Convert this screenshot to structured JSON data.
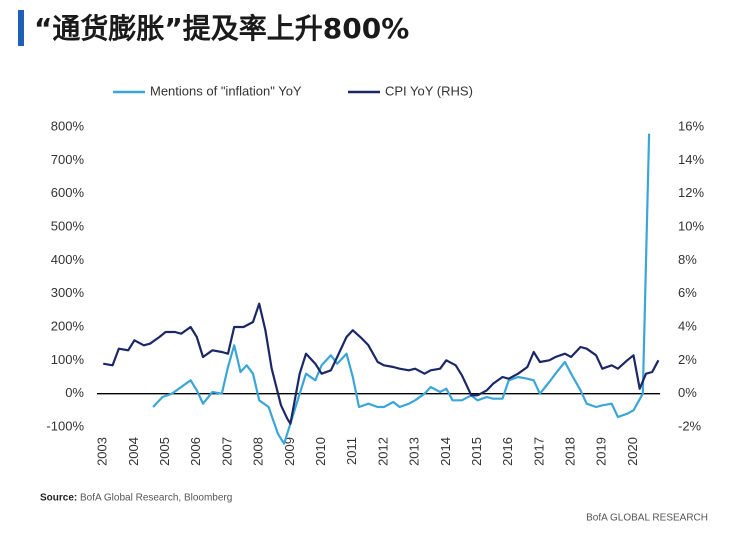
{
  "chart_data": {
    "type": "line",
    "title": "“通货膨胀”提及率上升800%",
    "source_label": "Source:",
    "source": "BofA Global Research, Bloomberg",
    "brand": "BofA GLOBAL RESEARCH",
    "xlim": [
      2002.8,
      2020.85
    ],
    "xticks": [
      2003,
      2004,
      2005,
      2006,
      2007,
      2008,
      2009,
      2010,
      2011,
      2012,
      2013,
      2014,
      2015,
      2016,
      2017,
      2018,
      2019,
      2020
    ],
    "ylim": [
      -100,
      800
    ],
    "yticks": [
      {
        "value": -100,
        "label": "-100%"
      },
      {
        "value": 0,
        "label": "0%"
      },
      {
        "value": 100,
        "label": "100%"
      },
      {
        "value": 200,
        "label": "200%"
      },
      {
        "value": 300,
        "label": "300%"
      },
      {
        "value": 400,
        "label": "400%"
      },
      {
        "value": 500,
        "label": "500%"
      },
      {
        "value": 600,
        "label": "600%"
      },
      {
        "value": 700,
        "label": "700%"
      },
      {
        "value": 800,
        "label": "800%"
      }
    ],
    "y2lim": [
      -2,
      16
    ],
    "y2ticks": [
      {
        "value": -2,
        "label": "-2%"
      },
      {
        "value": 0,
        "label": "0%"
      },
      {
        "value": 2,
        "label": "2%"
      },
      {
        "value": 4,
        "label": "4%"
      },
      {
        "value": 6,
        "label": "6%"
      },
      {
        "value": 8,
        "label": "8%"
      },
      {
        "value": 10,
        "label": "10%"
      },
      {
        "value": 12,
        "label": "12%"
      },
      {
        "value": 14,
        "label": "14%"
      },
      {
        "value": 16,
        "label": "16%"
      }
    ],
    "series": [
      {
        "name": "Mentions of \"inflation\" YoY",
        "color": "#3aa6d8",
        "axis": "y",
        "x": [
          2004.6,
          2004.9,
          2005.2,
          2005.5,
          2005.8,
          2006.0,
          2006.2,
          2006.5,
          2006.8,
          2007.0,
          2007.2,
          2007.4,
          2007.6,
          2007.8,
          2008.0,
          2008.3,
          2008.6,
          2008.8,
          2009.0,
          2009.3,
          2009.5,
          2009.8,
          2010.0,
          2010.3,
          2010.5,
          2010.8,
          2011.0,
          2011.2,
          2011.5,
          2011.8,
          2012.0,
          2012.3,
          2012.5,
          2012.8,
          2013.0,
          2013.3,
          2013.5,
          2013.8,
          2014.0,
          2014.2,
          2014.5,
          2014.8,
          2015.0,
          2015.3,
          2015.5,
          2015.8,
          2016.0,
          2016.3,
          2016.6,
          2016.8,
          2017.0,
          2017.3,
          2017.5,
          2017.8,
          2018.0,
          2018.3,
          2018.5,
          2018.8,
          2019.0,
          2019.3,
          2019.5,
          2019.8,
          2020.0,
          2020.3,
          2020.5
        ],
        "values": [
          -40,
          -10,
          0,
          20,
          40,
          10,
          -30,
          5,
          0,
          80,
          145,
          65,
          85,
          60,
          -20,
          -40,
          -120,
          -150,
          -90,
          0,
          60,
          40,
          85,
          115,
          90,
          120,
          50,
          -40,
          -30,
          -40,
          -40,
          -25,
          -40,
          -30,
          -20,
          0,
          20,
          5,
          15,
          -20,
          -20,
          -5,
          -20,
          -10,
          -15,
          -15,
          40,
          50,
          45,
          40,
          0,
          35,
          60,
          95,
          60,
          10,
          -30,
          -40,
          -35,
          -30,
          -70,
          -60,
          -50,
          0,
          780
        ]
      },
      {
        "name": "CPI YoY (RHS)",
        "color": "#1b2766",
        "axis": "y2",
        "x": [
          2003.0,
          2003.3,
          2003.5,
          2003.8,
          2004.0,
          2004.3,
          2004.5,
          2004.8,
          2005.0,
          2005.3,
          2005.5,
          2005.8,
          2006.0,
          2006.2,
          2006.5,
          2006.8,
          2007.0,
          2007.2,
          2007.5,
          2007.8,
          2008.0,
          2008.2,
          2008.4,
          2008.7,
          2008.9,
          2009.0,
          2009.3,
          2009.5,
          2009.8,
          2010.0,
          2010.3,
          2010.5,
          2010.8,
          2011.0,
          2011.3,
          2011.5,
          2011.8,
          2012.0,
          2012.3,
          2012.5,
          2012.8,
          2013.0,
          2013.3,
          2013.5,
          2013.8,
          2014.0,
          2014.3,
          2014.5,
          2014.8,
          2015.0,
          2015.3,
          2015.5,
          2015.8,
          2016.0,
          2016.3,
          2016.6,
          2016.8,
          2017.0,
          2017.3,
          2017.5,
          2017.8,
          2018.0,
          2018.3,
          2018.5,
          2018.8,
          2019.0,
          2019.3,
          2019.5,
          2019.8,
          2020.0,
          2020.2,
          2020.4,
          2020.6,
          2020.8
        ],
        "values": [
          1.8,
          1.7,
          2.7,
          2.6,
          3.2,
          2.9,
          3.0,
          3.4,
          3.7,
          3.7,
          3.6,
          4.0,
          3.4,
          2.2,
          2.6,
          2.5,
          2.4,
          4.0,
          4.0,
          4.3,
          5.4,
          3.8,
          1.5,
          -0.7,
          -1.5,
          -1.8,
          1.2,
          2.4,
          1.8,
          1.2,
          1.4,
          2.2,
          3.4,
          3.8,
          3.3,
          2.9,
          1.9,
          1.7,
          1.6,
          1.5,
          1.4,
          1.5,
          1.2,
          1.4,
          1.5,
          2.0,
          1.7,
          1.1,
          -0.1,
          -0.1,
          0.2,
          0.6,
          1.0,
          0.9,
          1.2,
          1.6,
          2.5,
          1.9,
          2.0,
          2.2,
          2.4,
          2.2,
          2.8,
          2.7,
          2.3,
          1.5,
          1.7,
          1.5,
          2.0,
          2.3,
          0.3,
          1.2,
          1.3,
          2.0
        ]
      }
    ]
  }
}
